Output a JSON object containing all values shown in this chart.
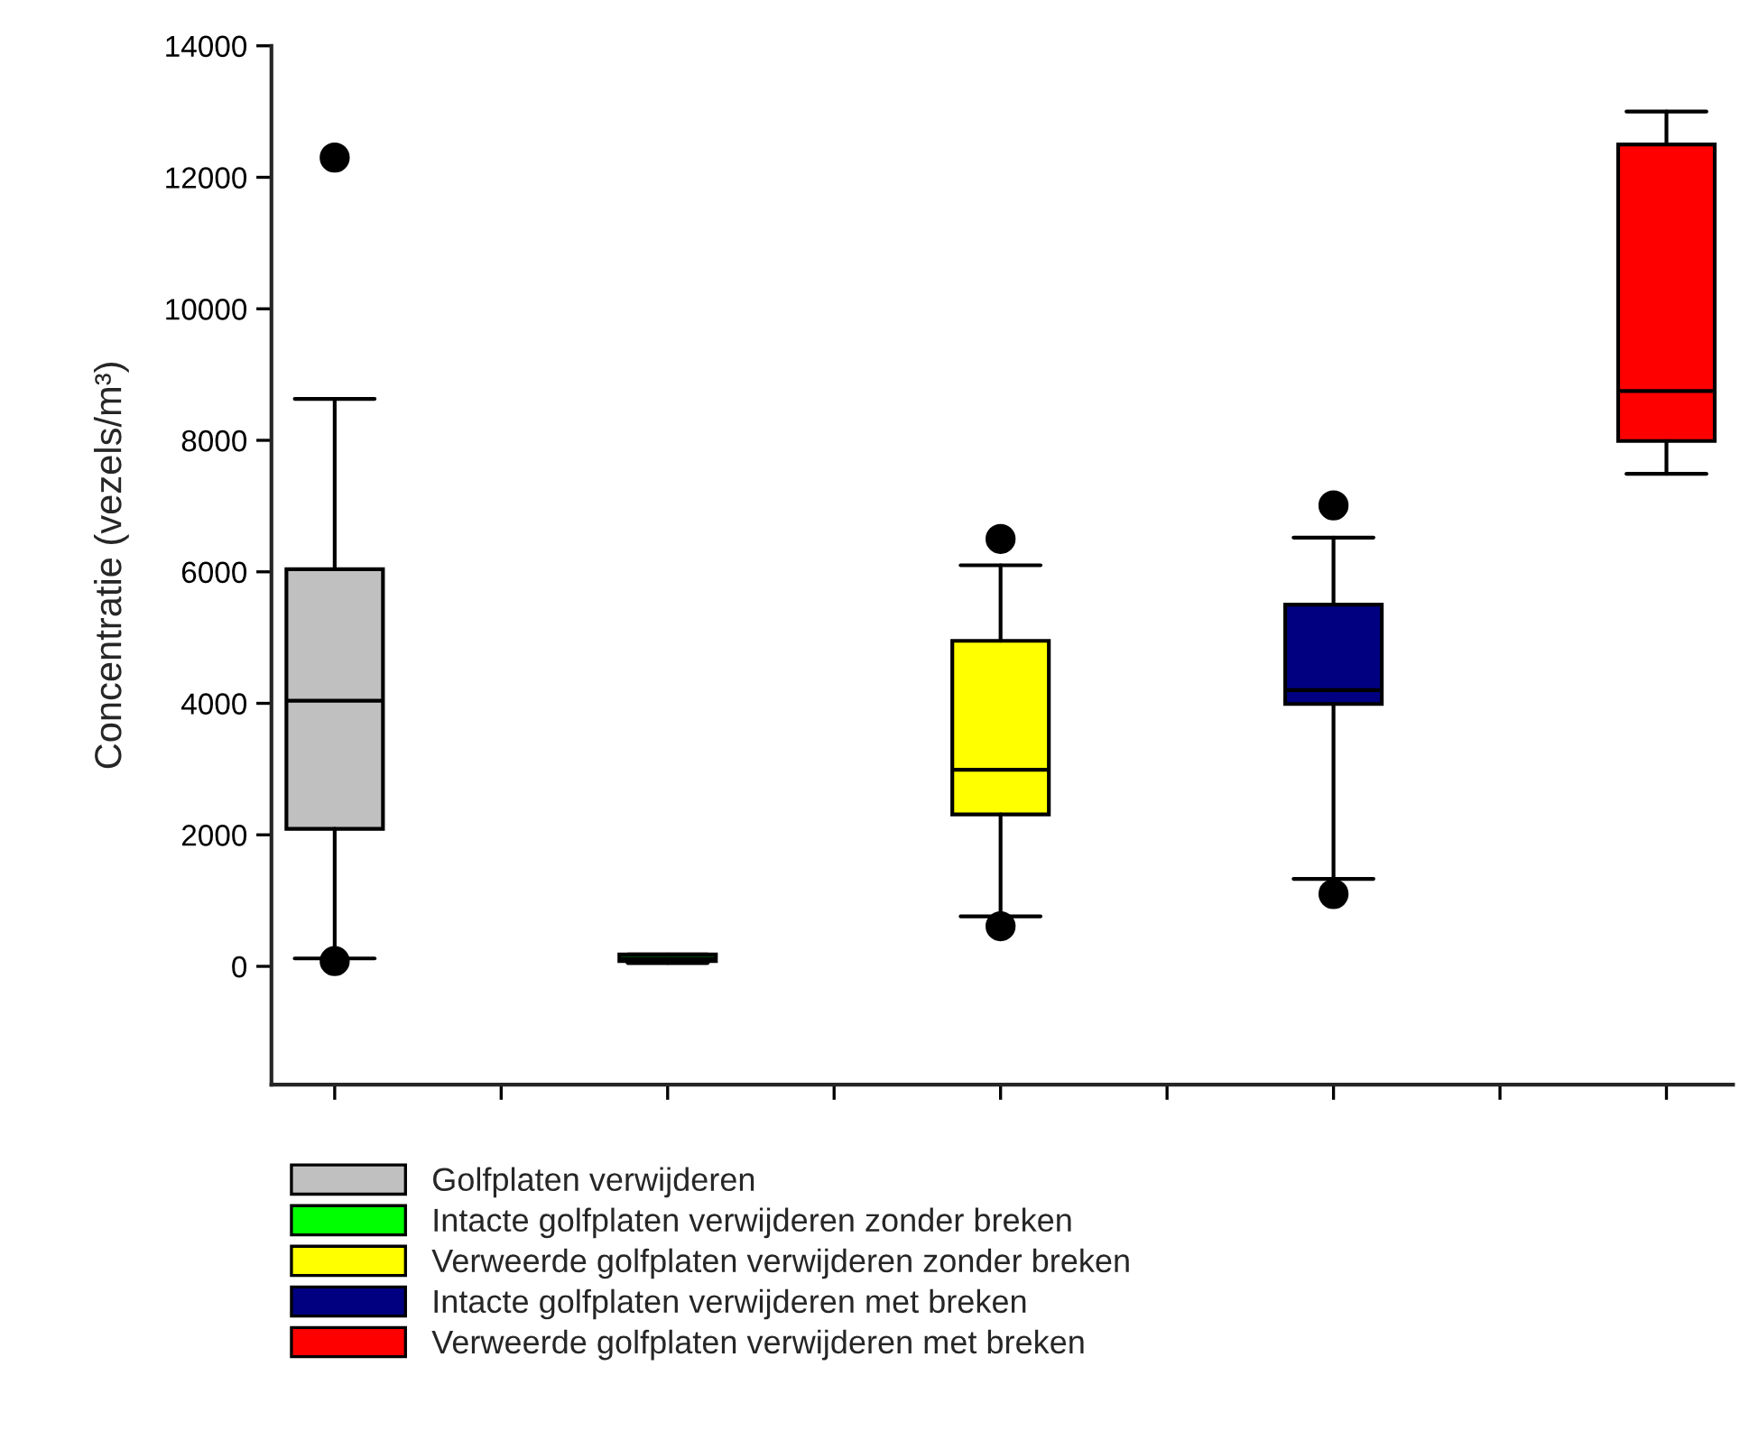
{
  "chart_data": {
    "type": "box",
    "ylabel": "Concentratie (vezels/m³)",
    "categories": [
      null,
      null,
      null,
      null,
      null
    ],
    "series": [
      {
        "name": "Golfplaten verwijderen",
        "color": "#c0c0c0",
        "boxes": [
          {
            "low": 120,
            "q1": 2090,
            "median": 4040,
            "q3": 6040,
            "high": 8630,
            "outliers": [
              12300,
              80
            ]
          },
          null,
          null,
          null,
          null
        ]
      },
      {
        "name": "Intacte golfplaten verwijderen zonder breken",
        "color": "#00ff00",
        "boxes": [
          null,
          {
            "low": 50,
            "q1": 80,
            "median": 120,
            "q3": 180,
            "high": 180
          },
          null,
          null,
          null
        ]
      },
      {
        "name": "Verweerde golfplaten verwijderen zonder breken",
        "color": "#ffff00",
        "boxes": [
          null,
          null,
          {
            "low": 760,
            "q1": 2310,
            "median": 2990,
            "q3": 4950,
            "high": 6100,
            "outliers": [
              6500,
              610
            ]
          },
          null,
          null
        ]
      },
      {
        "name": "Intacte golfplaten verwijderen met breken",
        "color": "#000080",
        "boxes": [
          null,
          null,
          null,
          {
            "low": 1330,
            "q1": 3990,
            "median": 4200,
            "q3": 5500,
            "high": 6520,
            "outliers": [
              7010,
              1100
            ]
          },
          null
        ]
      },
      {
        "name": "Verweerde golfplaten verwijderen met breken",
        "color": "#ff0000",
        "boxes": [
          null,
          null,
          null,
          null,
          {
            "low": 7490,
            "q1": 7990,
            "median": 8750,
            "q3": 12500,
            "high": 13000
          }
        ]
      }
    ],
    "ylim": [
      -1800,
      14000
    ],
    "yticks": [
      0,
      2000,
      4000,
      6000,
      8000,
      10000,
      12000,
      14000
    ],
    "tick_labels": "y",
    "grid": false,
    "legend": "bottom"
  }
}
